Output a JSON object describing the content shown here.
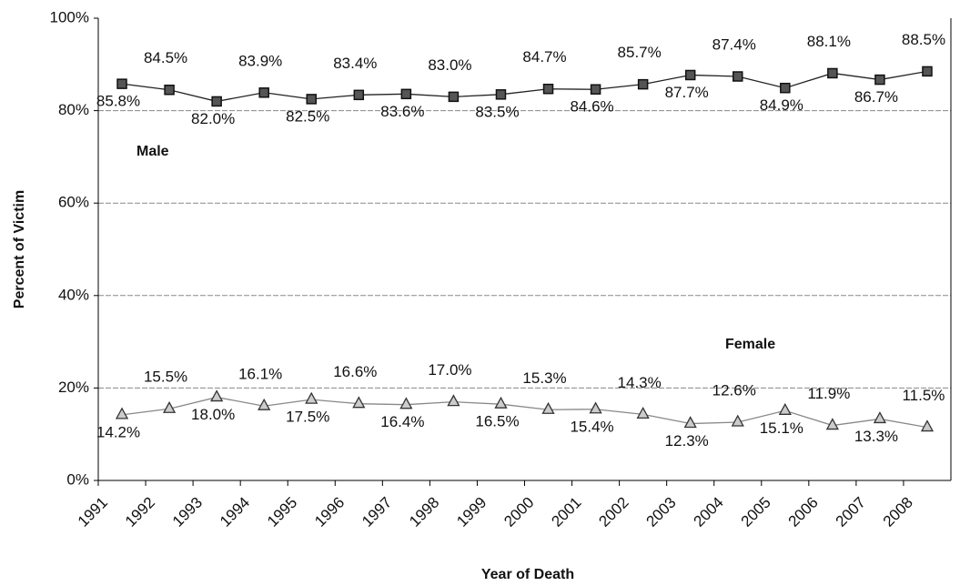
{
  "chart_data": {
    "type": "line",
    "x_label": "Year of Death",
    "y_label": "Percent of Victim",
    "categories": [
      "1991",
      "1992",
      "1993",
      "1994",
      "1995",
      "1996",
      "1997",
      "1998",
      "1999",
      "2000",
      "2001",
      "2002",
      "2003",
      "2004",
      "2005",
      "2006",
      "2007",
      "2008"
    ],
    "series": [
      {
        "name": "Male",
        "color": "#222222",
        "values": [
          85.8,
          84.5,
          82.0,
          83.9,
          82.5,
          83.4,
          83.6,
          83.0,
          83.5,
          84.7,
          84.6,
          85.7,
          87.7,
          87.4,
          84.9,
          88.1,
          86.7,
          88.5
        ],
        "value_labels": [
          "85.8%",
          "84.5%",
          "82.0%",
          "83.9%",
          "82.5%",
          "83.4%",
          "83.6%",
          "83.0%",
          "83.5%",
          "84.7%",
          "84.6%",
          "85.7%",
          "87.7%",
          "87.4%",
          "84.9%",
          "88.1%",
          "86.7%",
          "88.5%"
        ]
      },
      {
        "name": "Female",
        "color": "#888888",
        "values": [
          14.2,
          15.5,
          18.0,
          16.1,
          17.5,
          16.6,
          16.4,
          17.0,
          16.5,
          15.3,
          15.4,
          14.3,
          12.3,
          12.6,
          15.1,
          11.9,
          13.3,
          11.5
        ],
        "value_labels": [
          "14.2%",
          "15.5%",
          "18.0%",
          "16.1%",
          "17.5%",
          "16.6%",
          "16.4%",
          "17.0%",
          "16.5%",
          "15.3%",
          "15.4%",
          "14.3%",
          "12.3%",
          "12.6%",
          "15.1%",
          "11.9%",
          "13.3%",
          "11.5%"
        ]
      }
    ],
    "ylim": [
      0,
      100
    ],
    "yticks": [
      {
        "value": 0,
        "label": "0%"
      },
      {
        "value": 20,
        "label": "20%"
      },
      {
        "value": 40,
        "label": "40%"
      },
      {
        "value": 60,
        "label": "60%"
      },
      {
        "value": 80,
        "label": "80%"
      },
      {
        "value": 100,
        "label": "100%"
      }
    ],
    "grid": true
  }
}
